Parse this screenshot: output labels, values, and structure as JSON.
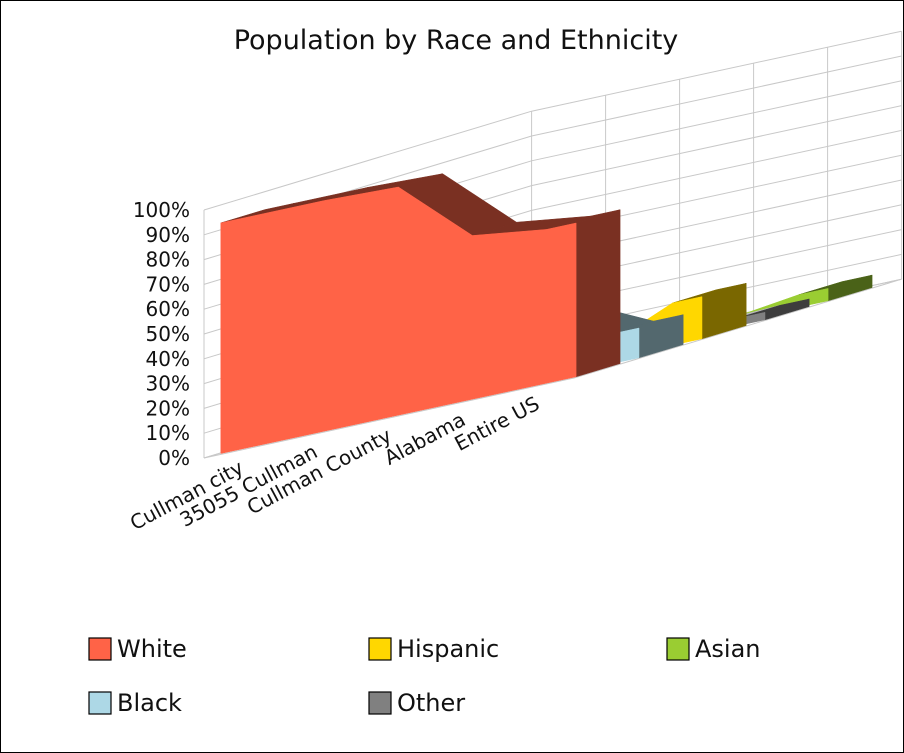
{
  "chart_data": {
    "type": "area",
    "title": "Population by Race and Ethnicity",
    "categories": [
      "Cullman city",
      "35055 Cullman",
      "Cullman County",
      "Alabama",
      "Entire US"
    ],
    "y_tick_labels": [
      "0%",
      "10%",
      "20%",
      "30%",
      "40%",
      "50%",
      "60%",
      "70%",
      "80%",
      "90%",
      "100%"
    ],
    "ylim": [
      0,
      100
    ],
    "grid": true,
    "legend_placement": "bottom",
    "series": [
      {
        "name": "White",
        "values": [
          93,
          93,
          92,
          66,
          62
        ],
        "color": "#ff6347"
      },
      {
        "name": "Black",
        "values": [
          1,
          1,
          1,
          26,
          12
        ],
        "color": "#add8e6"
      },
      {
        "name": "Hispanic",
        "values": [
          5,
          4,
          4,
          4,
          17
        ],
        "color": "#ffd700"
      },
      {
        "name": "Other",
        "values": [
          1,
          1,
          1,
          2,
          3
        ],
        "color": "#808080"
      },
      {
        "name": "Asian",
        "values": [
          0,
          0,
          0,
          1,
          5
        ],
        "color": "#9acd32"
      }
    ],
    "legend": [
      {
        "name": "White",
        "color": "#ff6347"
      },
      {
        "name": "Hispanic",
        "color": "#ffd700"
      },
      {
        "name": "Asian",
        "color": "#9acd32"
      },
      {
        "name": "Black",
        "color": "#add8e6"
      },
      {
        "name": "Other",
        "color": "#808080"
      }
    ]
  }
}
